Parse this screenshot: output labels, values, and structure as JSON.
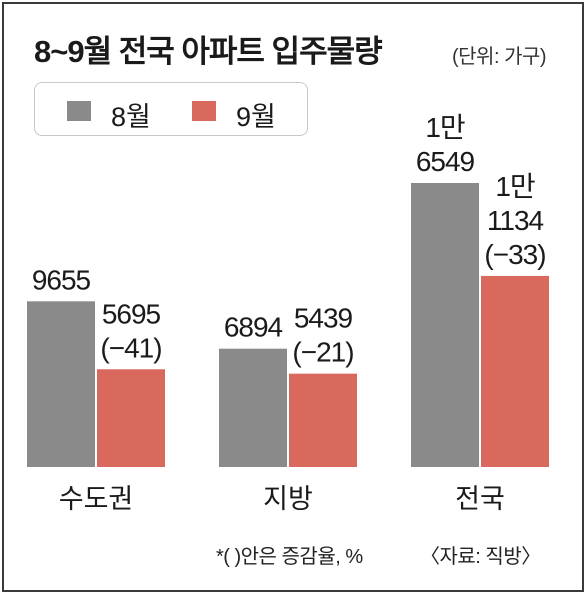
{
  "title": "8~9월 전국 아파트 입주물량",
  "unit": "(단위: 가구)",
  "note": "*( )안은 증감율, %",
  "source": "〈자료: 직방〉",
  "colors": {
    "aug": "#8a8a8a",
    "sep": "#d9695c"
  },
  "chart_data": {
    "type": "bar",
    "categories": [
      "수도권",
      "지방",
      "전국"
    ],
    "series": [
      {
        "name": "8월",
        "values": [
          9655,
          6894,
          16549
        ],
        "labels": [
          [
            "9655"
          ],
          [
            "6894"
          ],
          [
            "1만",
            "6549"
          ]
        ]
      },
      {
        "name": "9월",
        "values": [
          5695,
          5439,
          11134
        ],
        "labels": [
          [
            "5695",
            "(−41)"
          ],
          [
            "5439",
            "(−21)"
          ],
          [
            "1만",
            "1134",
            "(−33)"
          ]
        ]
      }
    ],
    "change_pct": [
      -41,
      -21,
      -33
    ],
    "ylim": [
      0,
      16549
    ],
    "legend": "top-left"
  }
}
